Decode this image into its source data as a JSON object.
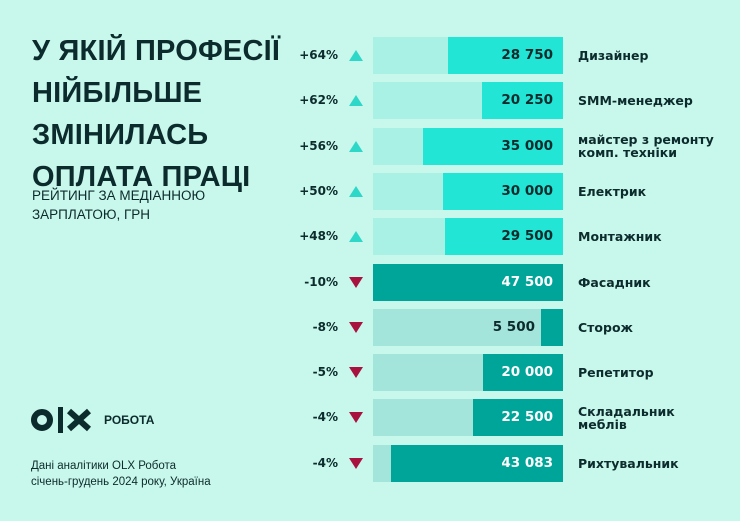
{
  "title_lines": [
    "У ЯКІЙ ПРОФЕСІЇ",
    "НІЙБІЛЬШЕ",
    "ЗМІНИЛАСЬ",
    "ОПЛАТА ПРАЦІ"
  ],
  "subtitle_lines": [
    "РЕЙТИНГ ЗА МЕДІАННОЮ",
    "ЗАРПЛАТОЮ, ГРН"
  ],
  "logo": {
    "brand": "OLX",
    "text": "РОБОТА"
  },
  "source_lines": [
    "Дані аналітики OLX Робота",
    "січень-грудень 2024 року, Україна"
  ],
  "colors": {
    "background": "#c8f7ec",
    "up_track": "#a9f1e5",
    "up_fill": "#22e5d6",
    "up_arrow": "#2dd8c8",
    "down_track": "#a3e5db",
    "down_fill": "#00a59a",
    "down_arrow": "#a8123f",
    "text": "#0c2b2c"
  },
  "chart_data": {
    "type": "bar",
    "orientation": "horizontal",
    "xlim": [
      0,
      47500
    ],
    "grid": false,
    "categories": [
      "Дизайнер",
      "SMM-менеджер",
      "майстер з ремонту комп. техніки",
      "Електрик",
      "Монтажник",
      "Фасадник",
      "Сторож",
      "Репетитор",
      "Складальник меблів",
      "Рихтувальник"
    ],
    "category_lines": [
      [
        "Дизайнер"
      ],
      [
        "SMM-менеджер"
      ],
      [
        "майстер з ремонту",
        "комп. техніки"
      ],
      [
        "Електрик"
      ],
      [
        "Монтажник"
      ],
      [
        "Фасадник"
      ],
      [
        "Сторож"
      ],
      [
        "Репетитор"
      ],
      [
        "Складальник",
        "меблів"
      ],
      [
        "Рихтувальник"
      ]
    ],
    "values": [
      28750,
      20250,
      35000,
      30000,
      29500,
      47500,
      5500,
      20000,
      22500,
      43083
    ],
    "value_labels": [
      "28 750",
      "20 250",
      "35 000",
      "30 000",
      "29 500",
      "47 500",
      "5 500",
      "20 000",
      "22 500",
      "43 083"
    ],
    "change_labels": [
      "+64%",
      "+62%",
      "+56%",
      "+50%",
      "+48%",
      "-10%",
      "-8%",
      "-5%",
      "-4%",
      "-4%"
    ],
    "change_pct": [
      64,
      62,
      56,
      50,
      48,
      -10,
      -8,
      -5,
      -4,
      -4
    ]
  }
}
